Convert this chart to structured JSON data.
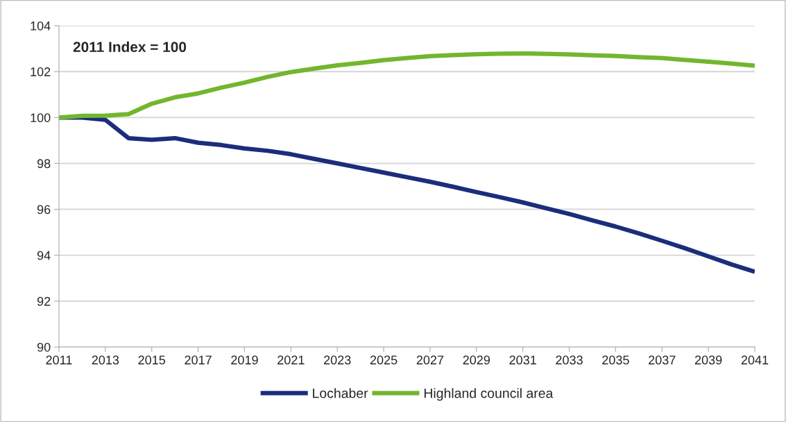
{
  "chart_data": {
    "type": "line",
    "x": [
      2011,
      2012,
      2013,
      2014,
      2015,
      2016,
      2017,
      2018,
      2019,
      2020,
      2021,
      2022,
      2023,
      2024,
      2025,
      2026,
      2027,
      2028,
      2029,
      2030,
      2031,
      2032,
      2033,
      2034,
      2035,
      2036,
      2037,
      2038,
      2039,
      2040,
      2041
    ],
    "series": [
      {
        "name": "Lochaber",
        "color": "#1b2d7c",
        "values": [
          100,
          100.0,
          99.9,
          99.1,
          99.03,
          99.1,
          98.9,
          98.8,
          98.65,
          98.55,
          98.4,
          98.2,
          98.0,
          97.8,
          97.6,
          97.4,
          97.2,
          96.98,
          96.75,
          96.53,
          96.3,
          96.05,
          95.8,
          95.52,
          95.25,
          94.95,
          94.63,
          94.3,
          93.95,
          93.6,
          93.28
        ]
      },
      {
        "name": "Highland council area",
        "color": "#72b62e",
        "values": [
          100,
          100.07,
          100.08,
          100.15,
          100.6,
          100.88,
          101.05,
          101.3,
          101.52,
          101.77,
          101.98,
          102.13,
          102.27,
          102.38,
          102.5,
          102.59,
          102.67,
          102.72,
          102.76,
          102.78,
          102.79,
          102.77,
          102.75,
          102.71,
          102.68,
          102.63,
          102.59,
          102.51,
          102.43,
          102.35,
          102.26
        ]
      }
    ],
    "annotations": [
      "2011 Index = 100"
    ],
    "xlim": [
      2011,
      2041
    ],
    "xticks": [
      2011,
      2013,
      2015,
      2017,
      2019,
      2021,
      2023,
      2025,
      2027,
      2029,
      2031,
      2033,
      2035,
      2037,
      2039,
      2041
    ],
    "ylim": [
      90,
      104
    ],
    "yticks": [
      90,
      92,
      94,
      96,
      98,
      100,
      102,
      104
    ],
    "grid": "y",
    "legend": "bottom",
    "marker": "none",
    "line_style": "solid"
  }
}
